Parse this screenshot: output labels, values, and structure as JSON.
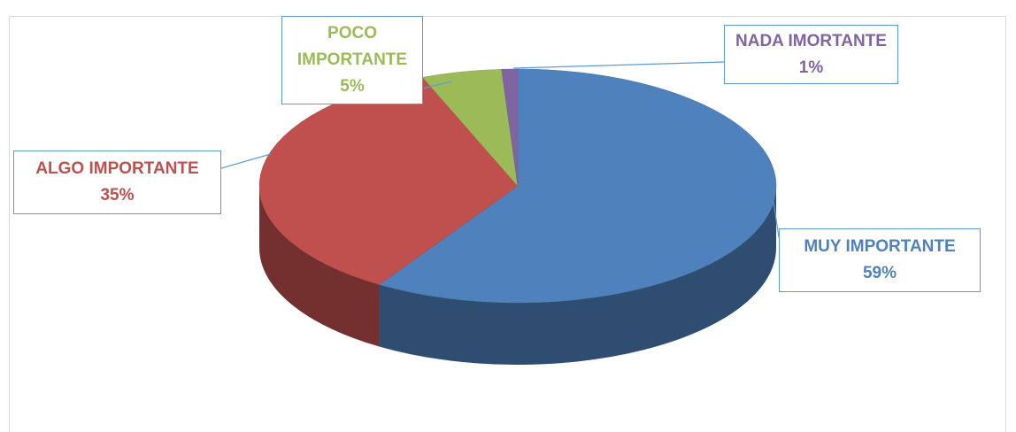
{
  "chart_data": {
    "type": "pie",
    "categories": [
      "MUY IMPORTANTE",
      "ALGO IMPORTANTE",
      "POCO IMPORTANTE",
      "NADA IMORTANTE"
    ],
    "values": [
      59,
      35,
      5,
      1
    ],
    "value_labels": [
      "59%",
      "35%",
      "5%",
      "1%"
    ],
    "colors": [
      "#4f81bd",
      "#c0504d",
      "#9bbb59",
      "#8064a2"
    ]
  }
}
